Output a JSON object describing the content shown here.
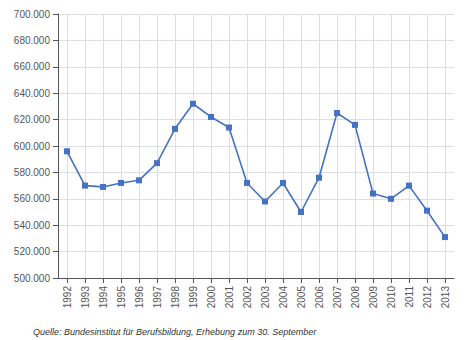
{
  "chart_data": {
    "type": "line",
    "x": [
      1992,
      1993,
      1994,
      1995,
      1996,
      1997,
      1998,
      1999,
      2000,
      2001,
      2002,
      2003,
      2004,
      2005,
      2006,
      2007,
      2008,
      2009,
      2010,
      2011,
      2012,
      2013
    ],
    "values": [
      596000,
      570000,
      569000,
      572000,
      574000,
      587000,
      613000,
      632000,
      622000,
      614000,
      572000,
      558000,
      572000,
      550000,
      576000,
      625000,
      616000,
      564000,
      560000,
      570000,
      551000,
      531000
    ],
    "color": "#4472C4",
    "marker": "square",
    "xlim": [
      1991.5,
      2013.5
    ],
    "xticks": [
      1992,
      1993,
      1994,
      1995,
      1996,
      1997,
      1998,
      1999,
      2000,
      2001,
      2002,
      2003,
      2004,
      2005,
      2006,
      2007,
      2008,
      2009,
      2010,
      2011,
      2012,
      2013
    ],
    "ylim": [
      500000,
      700000
    ],
    "yticks": [
      {
        "value": 500000,
        "label": "500.000"
      },
      {
        "value": 520000,
        "label": "520.000"
      },
      {
        "value": 540000,
        "label": "540.000"
      },
      {
        "value": 560000,
        "label": "560.000"
      },
      {
        "value": 580000,
        "label": "580.000"
      },
      {
        "value": 600000,
        "label": "600.000"
      },
      {
        "value": 620000,
        "label": "620.000"
      },
      {
        "value": 640000,
        "label": "640.000"
      },
      {
        "value": 660000,
        "label": "660.000"
      },
      {
        "value": 680000,
        "label": "680.000"
      },
      {
        "value": 700000,
        "label": "700.000"
      }
    ],
    "grid": true,
    "footnote": "Quelle: Bundesinstitut für Berufsbildung, Erhebung zum 30. September"
  }
}
